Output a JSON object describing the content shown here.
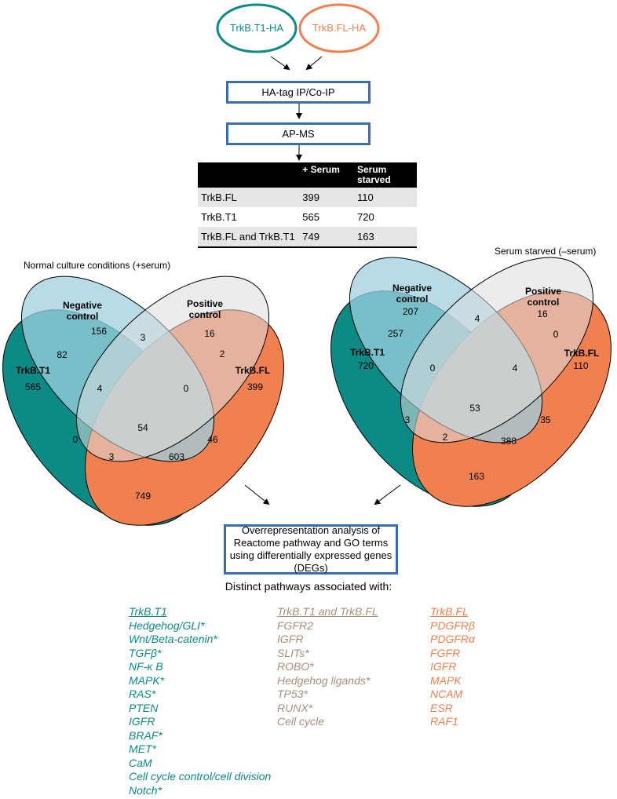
{
  "colors": {
    "teal": "#0b8a86",
    "orange": "#f08050",
    "negative_control": "#9fd0e0",
    "positive_control": "#dcdcdc",
    "overlap_brown": "#a7856a",
    "box_border": "#3a6cb4",
    "tan": "#a98e79"
  },
  "flow": {
    "t1_label": "TrkB.T1-HA",
    "fl_label": "TrkB.FL-HA",
    "ip_box": "HA-tag IP/Co-IP",
    "apms_box": "AP-MS"
  },
  "table": {
    "headers": [
      "",
      "+ Serum",
      "Serum starved"
    ],
    "rows": [
      {
        "name": "TrkB.FL",
        "serum": "399",
        "starved": "110"
      },
      {
        "name": "TrkB.T1",
        "serum": "565",
        "starved": "720"
      },
      {
        "name": "TrkB.FL and TrkB.T1",
        "serum": "749",
        "starved": "163"
      }
    ]
  },
  "venn_left": {
    "title": "Normal culture conditions (+serum)",
    "labels": {
      "neg": "Negative\ncontrol",
      "pos": "Positive\ncontrol",
      "t1": "TrkB.T1",
      "fl": "TrkB.FL"
    },
    "values": {
      "neg_only": "156",
      "pos_only": "16",
      "t1_only": "565",
      "fl_only": "399",
      "neg_pos": "3",
      "neg_t1": "82",
      "pos_fl": "2",
      "neg_t1_pos": "4",
      "neg_pos_fl": "0",
      "all": "54",
      "t1_pos": "0",
      "neg_fl": "46",
      "t1_fl_pos": "3",
      "t1_fl_neg": "603",
      "t1_fl": "749"
    }
  },
  "venn_right": {
    "title": "Serum starved (–serum)",
    "labels": {
      "neg": "Negative\ncontrol",
      "pos": "Positive\ncontrol",
      "t1": "TrkB.T1",
      "fl": "TrkB.FL"
    },
    "values": {
      "neg_only": "207",
      "pos_only": "16",
      "t1_only": "720",
      "fl_only": "110",
      "neg_pos": "4",
      "neg_t1": "257",
      "pos_fl": "0",
      "neg_t1_pos": "0",
      "neg_pos_fl": "4",
      "all": "53",
      "t1_pos": "3",
      "neg_fl": "35",
      "t1_fl_pos": "2",
      "t1_fl_neg": "388",
      "t1_fl": "163"
    }
  },
  "ora_box": "Overrepresentation analysis of Reactome pathway and GO terms using differentially expressed genes (DEGs)",
  "distinct_title": "Distinct pathways associated with:",
  "pathways": {
    "t1": {
      "header": "TrkB.T1",
      "items": [
        "Hedgehog/GLI*",
        "Wnt/Beta-catenin*",
        "TGFβ*",
        "NF-κ B",
        "MAPK*",
        "RAS*",
        "PTEN",
        "IGFR",
        "BRAF*",
        "MET*",
        "CaM",
        "Cell cycle control/cell division",
        "Notch*"
      ]
    },
    "both": {
      "header": "TrkB.T1 and TrkB.FL",
      "items": [
        "FGFR2",
        "IGFR",
        "SLITs*",
        "ROBO*",
        "Hedgehog ligands*",
        "TP53*",
        "RUNX*",
        "Cell cycle"
      ]
    },
    "fl": {
      "header": "TrkB.FL",
      "items": [
        "PDGFRβ",
        "PDGFRα",
        "FGFR",
        "IGFR",
        "MAPK",
        "NCAM",
        "ESR",
        "RAF1"
      ]
    }
  }
}
